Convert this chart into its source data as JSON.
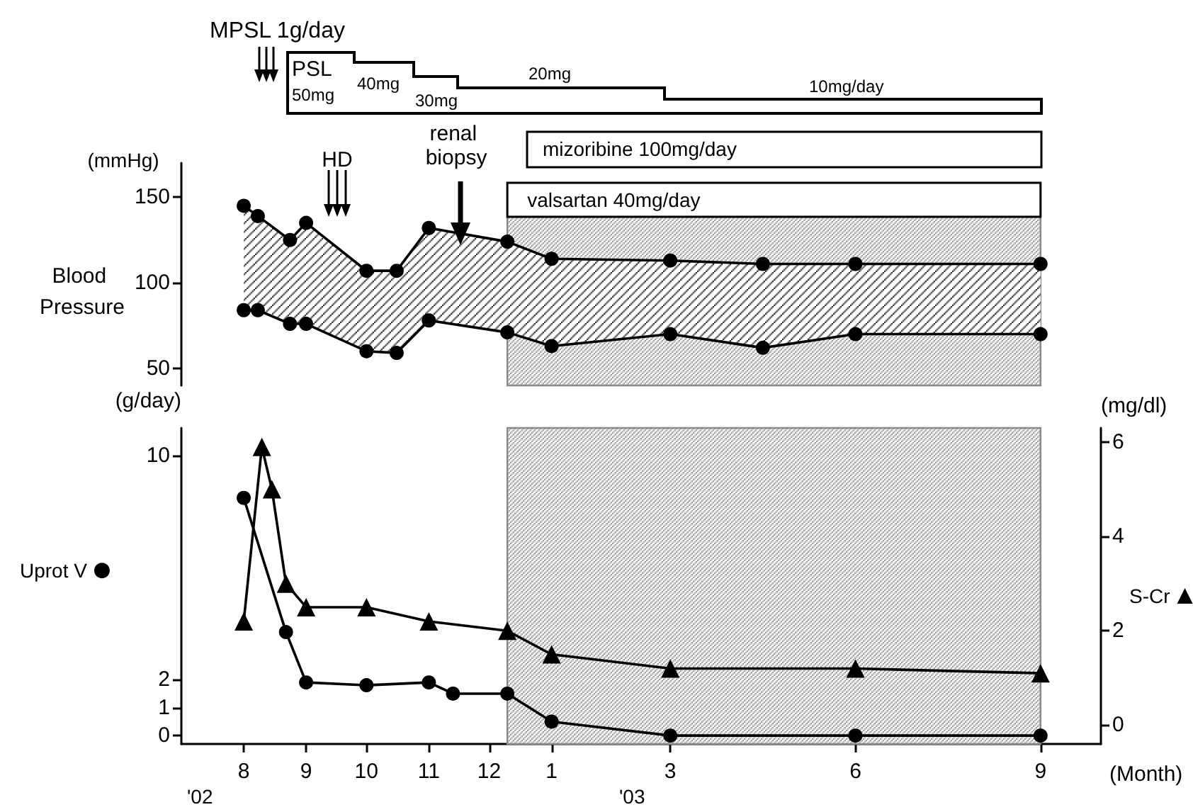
{
  "chart_data": [
    {
      "type": "line",
      "ylabel": "Blood Pressure",
      "x": [
        "2002-08",
        "2002-08-08",
        "2002-08-24",
        "2002-09",
        "2002-10",
        "2002-10-16",
        "2002-11",
        "2002-12-10",
        "2003-01",
        "2003-03",
        "2003-04-16",
        "2003-06",
        "2003-09"
      ],
      "series": [
        {
          "color": "#000000",
          "values": [
            145,
            139,
            125,
            135,
            107,
            107,
            132,
            124,
            114,
            113,
            111,
            111,
            111
          ],
          "lower": [
            84,
            84,
            76,
            76,
            60,
            59,
            78,
            71,
            63,
            70,
            62,
            70,
            70
          ],
          "upper": [
            145,
            139,
            125,
            135,
            107,
            107,
            132,
            124,
            114,
            113,
            111,
            111,
            111
          ]
        },
        {
          "color": "#000000",
          "values": [
            84,
            84,
            76,
            76,
            60,
            59,
            78,
            71,
            63,
            70,
            62,
            70,
            70
          ]
        }
      ],
      "xlim": [
        "2002-07-01",
        "2003-09"
      ],
      "xticks": [
        {
          "value": "2002-08",
          "label": "8"
        },
        {
          "value": "2002-09",
          "label": "9"
        },
        {
          "value": "2002-10",
          "label": "10"
        },
        {
          "value": "2002-11",
          "label": "11"
        },
        {
          "value": "2002-12",
          "label": "12"
        },
        {
          "value": "2003-01",
          "label": "1"
        },
        {
          "value": "2003-03",
          "label": "3"
        },
        {
          "value": "2003-06",
          "label": "6"
        },
        {
          "value": "2003-09",
          "label": "9"
        }
      ],
      "ylim": [
        40,
        170
      ],
      "yticks": [
        50,
        100,
        150
      ],
      "tick_labels": "y",
      "marker": "circle",
      "line_style": "solid",
      "bands": [
        {
          "axis": "x",
          "from": "2002-12-10",
          "to": "2003-09",
          "label": "valsartan 40mg/day",
          "color": "#888888"
        }
      ],
      "annotations": [
        "MPSL 1g/day",
        "PSL",
        "50mg",
        "40mg",
        "30mg",
        "20mg",
        "10mg/day",
        "mizoribine 100mg/day",
        "HD",
        "renal biopsy",
        "(mmHg)"
      ]
    },
    {
      "type": "line",
      "ylabel": "(g/day)",
      "y2label": "(mg/dl)",
      "xlabel": "(Month)",
      "series": [
        {
          "name": "Uprot V",
          "color": "#000000",
          "marker": "circle",
          "x": [
            "2002-08",
            "2002-08-22",
            "2002-09",
            "2002-10",
            "2002-11",
            "2002-11-13",
            "2002-12-10",
            "2003-01",
            "2003-03",
            "2003-06",
            "2003-09"
          ],
          "values": [
            8.5,
            3.7,
            1.9,
            1.8,
            1.9,
            1.5,
            1.5,
            0.5,
            0,
            0,
            0
          ]
        },
        {
          "name": "S-Cr",
          "color": "#000000",
          "marker": "triangle",
          "axis": "y2",
          "x": [
            "2002-08",
            "2002-08-10",
            "2002-08-15",
            "2002-08-22",
            "2002-09",
            "2002-10",
            "2002-11",
            "2002-12-10",
            "2003-01",
            "2003-03",
            "2003-06",
            "2003-09"
          ],
          "values": [
            2.2,
            5.9,
            5.0,
            3.0,
            2.5,
            2.5,
            2.2,
            2.0,
            1.5,
            1.2,
            1.2,
            1.1
          ]
        }
      ],
      "xlim": [
        "2002-07-01",
        "2003-10-01"
      ],
      "xticks": [
        {
          "value": "2002-08",
          "label": "8"
        },
        {
          "value": "2002-09",
          "label": "9"
        },
        {
          "value": "2002-10",
          "label": "10"
        },
        {
          "value": "2002-11",
          "label": "11"
        },
        {
          "value": "2002-12",
          "label": "12"
        },
        {
          "value": "2003-01",
          "label": "1"
        },
        {
          "value": "2003-03",
          "label": "3"
        },
        {
          "value": "2003-06",
          "label": "6"
        },
        {
          "value": "2003-09",
          "label": "9"
        }
      ],
      "ylim": [
        -0.3,
        11
      ],
      "yticks": [
        0,
        1,
        2,
        10
      ],
      "y2lim": [
        -0.4,
        6.3
      ],
      "y2ticks": [
        0,
        2,
        4,
        6
      ],
      "line_style": "solid",
      "legend": "left",
      "bands": [
        {
          "axis": "x",
          "from": "2002-12-10",
          "to": "2003-09",
          "color": "#888888"
        }
      ],
      "annotations": [
        "'02",
        "'03"
      ]
    }
  ]
}
